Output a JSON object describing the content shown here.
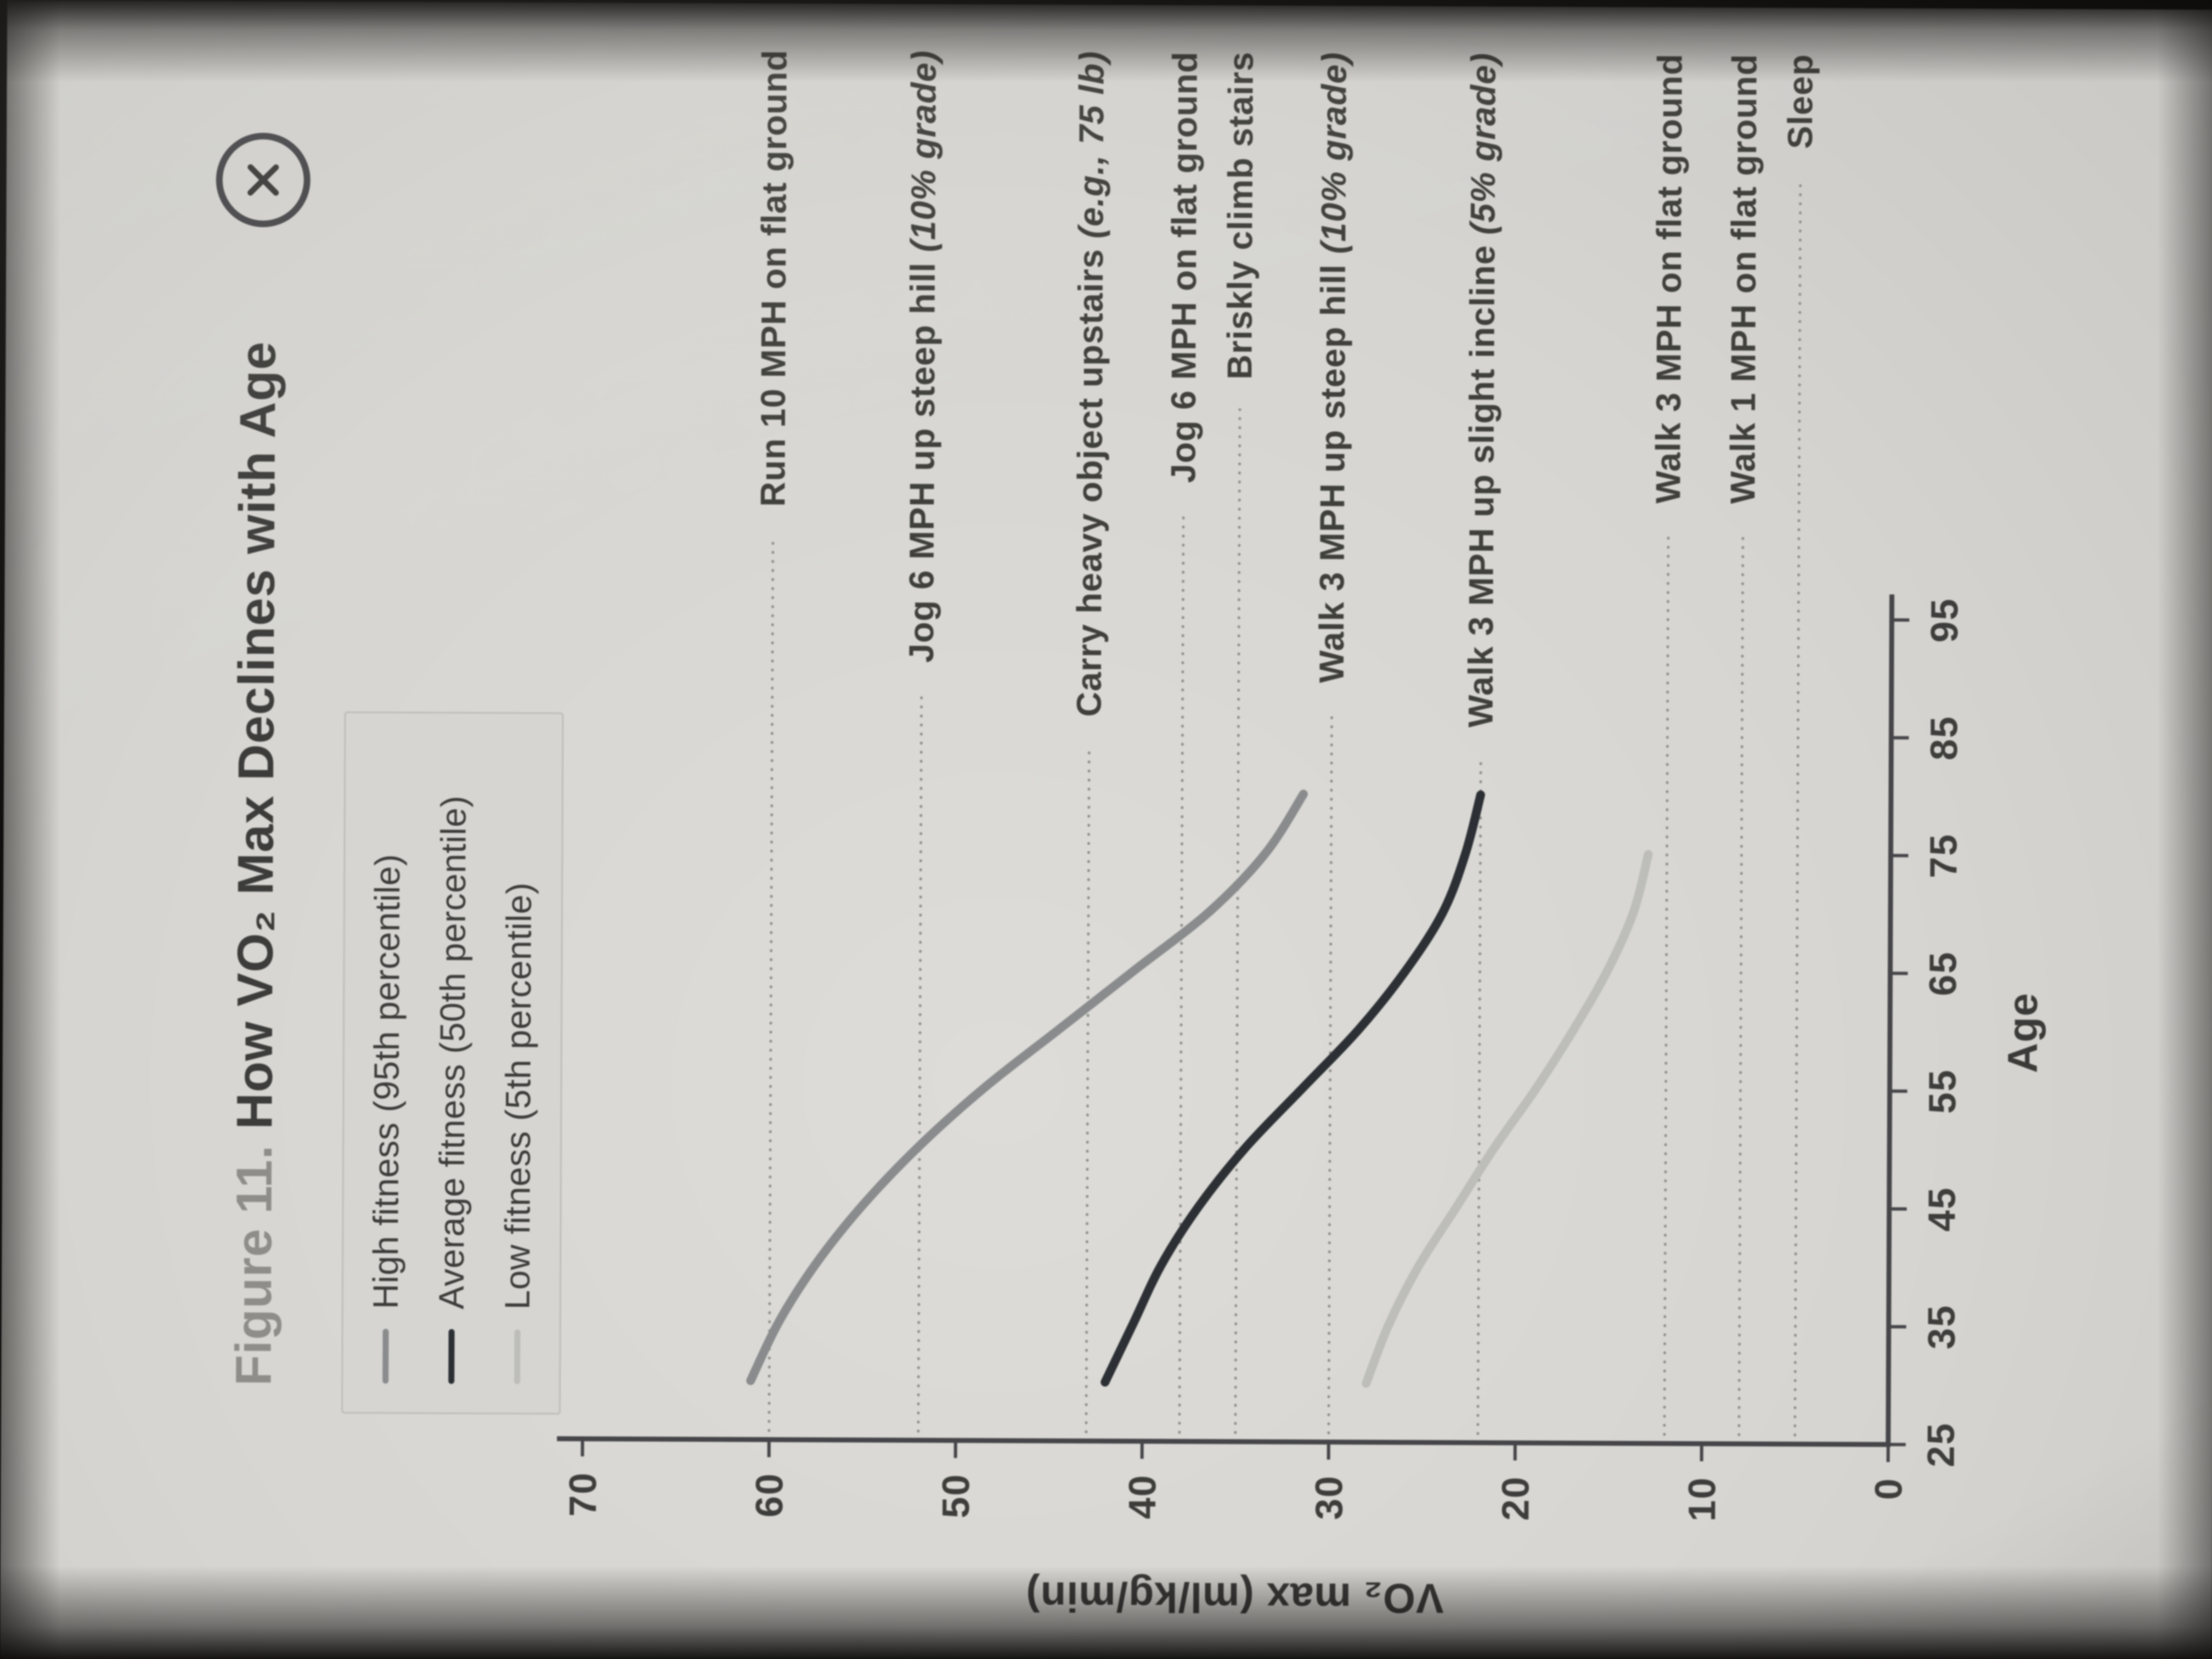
{
  "app": {
    "close_icon": "circle-x"
  },
  "figure": {
    "title_prefix": "Figure 11.",
    "title_main": "How VO₂ Max Declines with Age"
  },
  "legend": {
    "items": [
      {
        "label": "High fitness (95th percentile)",
        "color": "#898b8d"
      },
      {
        "label": "Average fitness (50th percentile)",
        "color": "#2c3035"
      },
      {
        "label": "Low fitness (5th percentile)",
        "color": "#bdbdb9"
      }
    ]
  },
  "chart_data": {
    "type": "line",
    "title": "Figure 11. How VO₂ Max Declines with Age",
    "xlabel": "Age",
    "ylabel": "VO₂ max (ml/kg/min)",
    "xlim": [
      25,
      95
    ],
    "ylim": [
      0,
      70
    ],
    "x_ticks": [
      25,
      35,
      45,
      55,
      65,
      75,
      85,
      95
    ],
    "y_ticks": [
      0,
      10,
      20,
      30,
      40,
      50,
      60,
      70
    ],
    "grid": false,
    "legend_position": "top-left",
    "axis_color": "#46464a",
    "dotted_line_color": "#8f8f8b",
    "series": [
      {
        "name": "High fitness (95th percentile)",
        "color": "#898b8d",
        "points": [
          [
            30,
            61
          ],
          [
            35,
            59.5
          ],
          [
            40,
            57.5
          ],
          [
            45,
            55
          ],
          [
            50,
            52
          ],
          [
            55,
            48.5
          ],
          [
            60,
            44.5
          ],
          [
            65,
            40.5
          ],
          [
            70,
            36.5
          ],
          [
            75,
            33.5
          ],
          [
            80,
            31.5
          ]
        ]
      },
      {
        "name": "Average fitness (50th percentile)",
        "color": "#2c3035",
        "points": [
          [
            30,
            42
          ],
          [
            35,
            40.5
          ],
          [
            40,
            39
          ],
          [
            45,
            37
          ],
          [
            50,
            34.5
          ],
          [
            55,
            31.5
          ],
          [
            60,
            28.5
          ],
          [
            65,
            26
          ],
          [
            70,
            24
          ],
          [
            75,
            22.8
          ],
          [
            80,
            22
          ]
        ]
      },
      {
        "name": "Low fitness (5th percentile)",
        "color": "#bdbdb9",
        "points": [
          [
            30,
            28
          ],
          [
            35,
            26.8
          ],
          [
            40,
            25.2
          ],
          [
            45,
            23.2
          ],
          [
            50,
            21.2
          ],
          [
            55,
            19
          ],
          [
            60,
            17
          ],
          [
            65,
            15.2
          ],
          [
            70,
            13.8
          ],
          [
            75,
            13
          ]
        ]
      }
    ],
    "reference_lines": [
      {
        "label": "Run 10 MPH on flat ground",
        "note": "",
        "value": 60
      },
      {
        "label": "Jog 6 MPH up steep hill ",
        "note": "(10% grade)",
        "value": 52
      },
      {
        "label": "Carry heavy object upstairs ",
        "note": "(e.g., 75 lb)",
        "value": 43
      },
      {
        "label": "Jog 6 MPH on flat ground",
        "note": "",
        "value": 38
      },
      {
        "label": "Briskly climb stairs",
        "note": "",
        "value": 35
      },
      {
        "label": "Walk 3 MPH up steep hill ",
        "note": "(10% grade)",
        "value": 30
      },
      {
        "label": "Walk 3 MPH up slight incline ",
        "note": "(5% grade)",
        "value": 22
      },
      {
        "label": "Walk 3 MPH on flat ground",
        "note": "",
        "value": 12
      },
      {
        "label": "Walk 1 MPH on flat ground",
        "note": "",
        "value": 8
      },
      {
        "label": "Sleep",
        "note": "",
        "value": 5
      }
    ]
  }
}
